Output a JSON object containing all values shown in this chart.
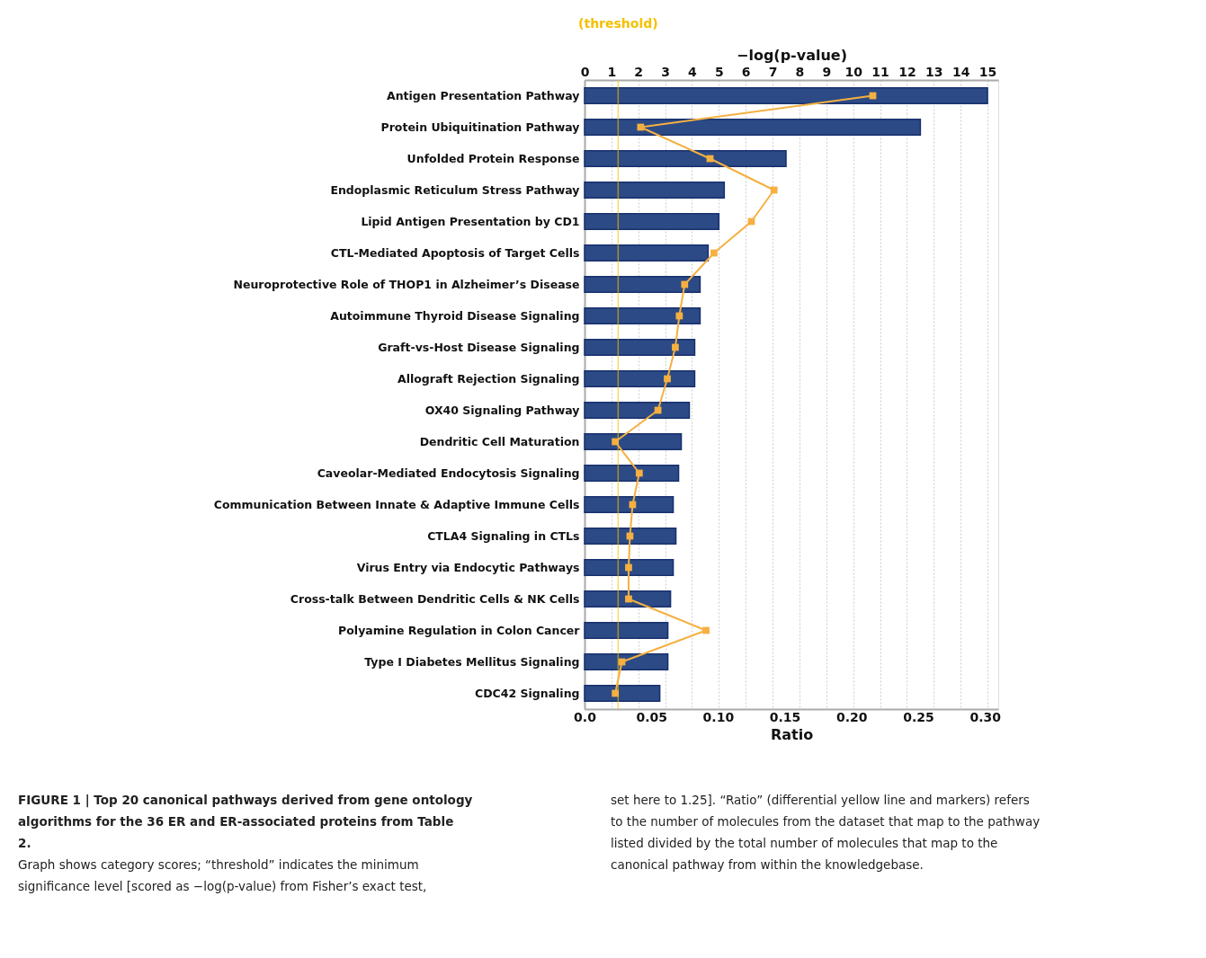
{
  "chart_data": {
    "type": "bar",
    "orientation": "horizontal",
    "categories": [
      "Antigen Presentation Pathway",
      "Protein Ubiquitination Pathway",
      "Unfolded Protein Response",
      "Endoplasmic Reticulum Stress Pathway",
      "Lipid Antigen Presentation by CD1",
      "CTL-Mediated Apoptosis of Target Cells",
      "Neuroprotective Role of THOP1 in Alzheimer’s Disease",
      "Autoimmune Thyroid Disease Signaling",
      "Graft-vs-Host Disease Signaling",
      "Allograft Rejection Signaling",
      "OX40 Signaling Pathway",
      "Dendritic Cell Maturation",
      "Caveolar-Mediated Endocytosis Signaling",
      "Communication Between Innate & Adaptive Immune Cells",
      "CTLA4 Signaling in CTLs",
      "Virus Entry via Endocytic Pathways",
      "Cross-talk Between Dendritic Cells & NK Cells",
      "Polyamine Regulation in Colon Cancer",
      "Type I Diabetes Mellitus Signaling",
      "CDC42 Signaling"
    ],
    "series": [
      {
        "axis": "x2",
        "color": "#2c4a85",
        "values": [
          15.0,
          12.5,
          7.5,
          5.2,
          5.0,
          4.6,
          4.3,
          4.3,
          4.1,
          4.1,
          3.9,
          3.6,
          3.5,
          3.3,
          3.4,
          3.3,
          3.2,
          3.1,
          3.1,
          2.8
        ]
      },
      {
        "type": "line",
        "color": "#f5b041",
        "values": [
          0.216,
          0.042,
          0.094,
          0.142,
          0.125,
          0.097,
          0.075,
          0.071,
          0.068,
          0.062,
          0.055,
          0.023,
          0.041,
          0.036,
          0.034,
          0.033,
          0.033,
          0.091,
          0.028,
          0.023
        ]
      }
    ],
    "marker": "square",
    "xlabel": "Ratio",
    "xlim": [
      0,
      0.31
    ],
    "xticks": [
      {
        "value": 0,
        "label": "0.0"
      },
      0.05,
      {
        "value": 0.1,
        "label": "0.10"
      },
      0.15,
      {
        "value": 0.2,
        "label": "0.20"
      },
      0.25,
      {
        "value": 0.3,
        "label": "0.30"
      }
    ],
    "x2label": "−log(p-value)",
    "x2lim": [
      0,
      15.4
    ],
    "x2ticks": [
      0,
      1,
      2,
      3,
      4,
      5,
      6,
      7,
      8,
      9,
      10,
      11,
      12,
      13,
      14,
      15
    ],
    "grid": "x",
    "ref_lines": [
      {
        "axis": "x2",
        "value": 1.25,
        "label": "(threshold)",
        "color": "#f5c000"
      }
    ],
    "annotations": [
      "FIGURE 1 | Top 20 canonical pathways derived from gene ontology algorithms for the 36 ER and ER-associated proteins from Table 2.",
      "Graph shows category scores; “threshold” indicates the minimum significance level [scored as −log(p-value) from Fisher’s exact test, set here to 1.25]. “Ratio” (differential yellow line and markers) refers to the number of molecules from the dataset that map to the pathway listed divided by the total number of molecules that map to the canonical pathway from within the knowledgebase."
    ]
  }
}
